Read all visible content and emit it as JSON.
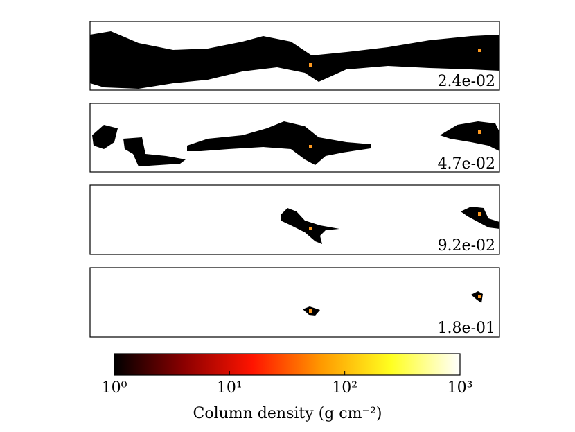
{
  "panels": [
    {
      "label": "2.4e-02"
    },
    {
      "label": "4.7e-02"
    },
    {
      "label": "9.2e-02"
    },
    {
      "label": "1.8e-01"
    }
  ],
  "colorbar": {
    "label": "Column density (g cm⁻²)",
    "log": true,
    "lim": [
      1,
      1000
    ],
    "ticks": [
      {
        "value": 1,
        "label": "10⁰"
      },
      {
        "value": 10,
        "label": "10¹"
      },
      {
        "value": 100,
        "label": "10²"
      },
      {
        "value": 1000,
        "label": "10³"
      }
    ],
    "colors": [
      "#000000",
      "#8a0000",
      "#ff1400",
      "#ff9a00",
      "#ffff20",
      "#ffffff"
    ]
  }
}
